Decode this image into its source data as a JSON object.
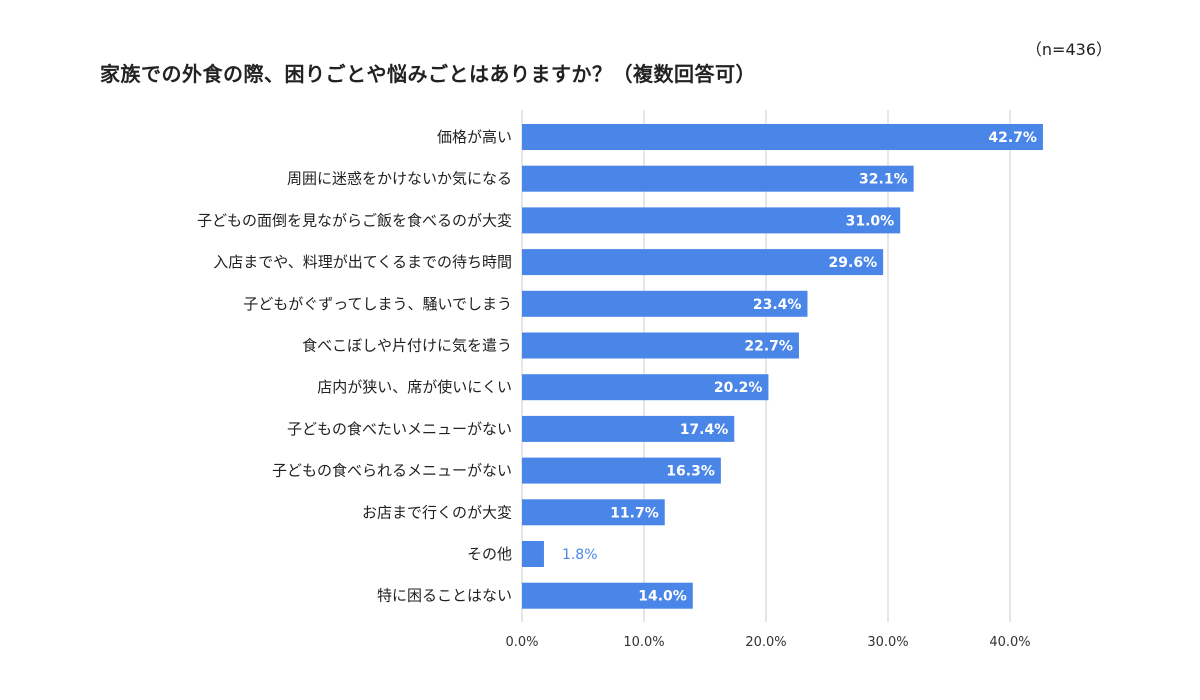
{
  "header": {
    "title": "家族での外食の際、困りごとや悩みごとはありますか？（複数回答可）",
    "sample_size": "（n=436）"
  },
  "chart_data": {
    "type": "bar",
    "orientation": "horizontal",
    "categories": [
      "価格が高い",
      "周囲に迷惑をかけないか気になる",
      "子どもの面倒を見ながらご飯を食べるのが大変",
      "入店までや、料理が出てくるまでの待ち時間",
      "子どもがぐずってしまう、騒いでしまう",
      "食べこぼしや片付けに気を遣う",
      "店内が狭い、席が使いにくい",
      "子どもの食べたいメニューがない",
      "子どもの食べられるメニューがない",
      "お店まで行くのが大変",
      "その他",
      "特に困ることはない"
    ],
    "values": [
      42.7,
      32.1,
      31.0,
      29.6,
      23.4,
      22.7,
      20.2,
      17.4,
      16.3,
      11.7,
      1.8,
      14.0
    ],
    "value_labels": [
      "42.7%",
      "32.1%",
      "31.0%",
      "29.6%",
      "23.4%",
      "22.7%",
      "20.2%",
      "17.4%",
      "16.3%",
      "11.7%",
      "1.8%",
      "14.0%"
    ],
    "xlim": [
      0,
      40
    ],
    "xticks": [
      0,
      10,
      20,
      30,
      40
    ],
    "xtick_labels": [
      "0.0%",
      "10.0%",
      "20.0%",
      "30.0%",
      "40.0%"
    ],
    "grid": true,
    "colors": {
      "bar": "#4a86e8",
      "grid": "#cccccc",
      "outside_label": "#4a86e8"
    }
  }
}
